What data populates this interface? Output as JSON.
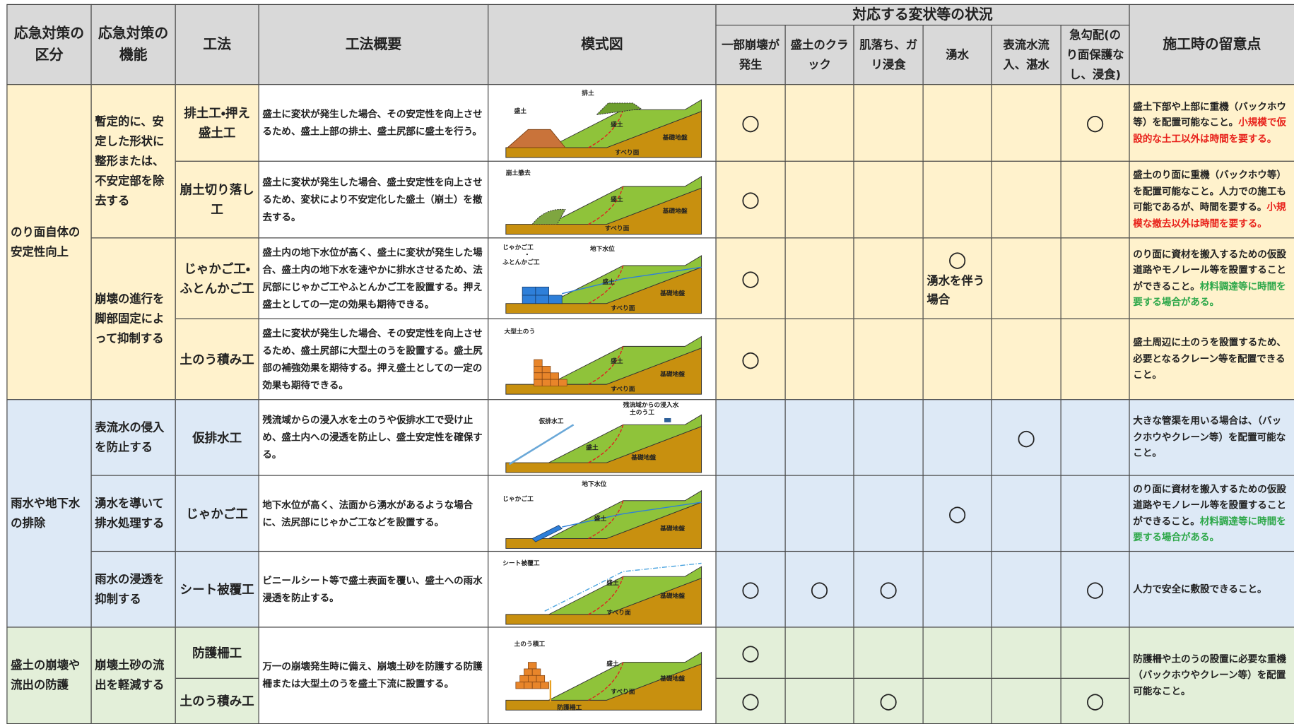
{
  "header": {
    "category": "応急対策の区分",
    "function": "応急対策の機能",
    "method": "工法",
    "summary": "工法概要",
    "diagram": "模式図",
    "conditions_group": "対応する変状等の状況",
    "conditions": [
      "一部崩壊が発生",
      "盛土のクラック",
      "肌落ち、ガリ浸食",
      "湧水",
      "表流水流入、湛水",
      "急勾配(のり面保護なし、浸食)"
    ],
    "notes": "施工時の留意点"
  },
  "categories": [
    {
      "label": "のり面自体の安定性向上",
      "color": "#fff2cc",
      "functions": [
        {
          "label": "暫定的に、安定した形状に整形または、不安定部を除去する",
          "blocks": [
            {
              "methods": [
                {
                  "name": "排土工・押え盛土工",
                  "status": [
                    "○",
                    null,
                    null,
                    null,
                    null,
                    "○"
                  ]
                }
              ],
              "summary": "盛土に変状が発生した場合、その安定性を向上させるため、盛土上部の排土、盛土尻部に盛土を行う。",
              "diagram_labels": [
                "排土",
                "盛土",
                "盛土",
                "すべり面",
                "基礎地盤"
              ],
              "notes": [
                {
                  "text": "盛土下部や上部に重機（バックホウ等）を配置可能なこと。"
                },
                {
                  "text": "小規模で仮設的な土工以外は時間を要する。",
                  "color": "#e8221b"
                }
              ]
            },
            {
              "methods": [
                {
                  "name": "崩土切り落し工",
                  "status": [
                    "○",
                    null,
                    null,
                    null,
                    null,
                    null
                  ]
                }
              ],
              "summary": "盛土に変状が発生した場合、盛土安定性を向上させるため、変状により不安定化した盛土（崩土）を撤去する。",
              "diagram_labels": [
                "崩土撤去",
                "盛土",
                "すべり面",
                "基礎地盤"
              ],
              "notes": [
                {
                  "text": "盛土のり面に重機（バックホウ等）を配置可能なこと。人力での施工も可能であるが、時間を要する。"
                },
                {
                  "text": "小規模な撤去以外は時間を要する。",
                  "color": "#e8221b"
                }
              ]
            }
          ]
        },
        {
          "label": "崩壊の進行を脚部固定によって抑制する",
          "blocks": [
            {
              "methods": [
                {
                  "name": "じゃかご工・ふとんかご工",
                  "status": [
                    "○",
                    null,
                    null,
                    {
                      "mark": "○",
                      "note": "湧水を伴う場合"
                    },
                    null,
                    null
                  ]
                }
              ],
              "summary": "盛土内の地下水位が高く、盛土に変状が発生した場合、盛土内の地下水を速やかに排水させるため、法尻部にじゃかご工やふとんかご工を設置する。押え盛土としての一定の効果も期待できる。",
              "diagram_labels": [
                "じゃかご工",
                "・",
                "ふとんかご工",
                "地下水位",
                "盛土",
                "すべり面",
                "基礎地盤"
              ],
              "notes": [
                {
                  "text": "のり面に資材を搬入するための仮設道路やモノレール等を設置することができること。"
                },
                {
                  "text": "材料調達等に時間を要する場合がある。",
                  "color": "#2ea84a"
                }
              ]
            },
            {
              "methods": [
                {
                  "name": "土のう積み工",
                  "status": [
                    "○",
                    null,
                    null,
                    null,
                    null,
                    null
                  ]
                }
              ],
              "summary": "盛土に変状が発生した場合、その安定性を向上させるため、盛土尻部に大型土のうを設置する。盛土尻部の補強効果を期待する。押え盛土としての一定の効果も期待できる。",
              "diagram_labels": [
                "大型土のう",
                "盛土",
                "すべり面",
                "基礎地盤"
              ],
              "notes": [
                {
                  "text": "盛土周辺に土のうを設置するため、必要となるクレーン等を配置できること。"
                }
              ]
            }
          ]
        }
      ]
    },
    {
      "label": "雨水や地下水の排除",
      "color": "#dde9f6",
      "functions": [
        {
          "label": "表流水の侵入を防止する",
          "blocks": [
            {
              "methods": [
                {
                  "name": "仮排水工",
                  "status": [
                    null,
                    null,
                    null,
                    null,
                    "○",
                    null
                  ]
                }
              ],
              "summary": "残流域からの浸入水を土のうや仮排水工で受け止め、盛土内への浸透を防止し、盛土安定性を確保する。",
              "diagram_labels": [
                "仮排水工",
                "残流域からの浸入水",
                "土のう工",
                "盛土",
                "基礎地盤"
              ],
              "notes": [
                {
                  "text": "大きな管渠を用いる場合は、（バックホウやクレーン等）を配置可能なこと。"
                }
              ]
            }
          ]
        },
        {
          "label": "湧水を導いて排水処理する",
          "blocks": [
            {
              "methods": [
                {
                  "name": "じゃかご工",
                  "status": [
                    null,
                    null,
                    null,
                    "○",
                    null,
                    null
                  ]
                }
              ],
              "summary": "地下水位が高く、法面から湧水があるような場合に、法尻部にじゃかご工などを設置する。",
              "diagram_labels": [
                "地下水位",
                "じゃかご工",
                "盛土",
                "基礎地盤"
              ],
              "notes": [
                {
                  "text": "のり面に資材を搬入するための仮設道路やモノレール等を設置することができること。"
                },
                {
                  "text": "材料調達等に時間を要する場合がある。",
                  "color": "#2ea84a"
                }
              ]
            }
          ]
        },
        {
          "label": "雨水の浸透を抑制する",
          "blocks": [
            {
              "methods": [
                {
                  "name": "シート被覆工",
                  "status": [
                    "○",
                    "○",
                    "○",
                    null,
                    null,
                    "○"
                  ]
                }
              ],
              "summary": "ビニールシート等で盛土表面を覆い、盛土への雨水浸透を防止する。",
              "diagram_labels": [
                "シート被覆工",
                "盛土",
                "すべり面",
                "基礎地盤"
              ],
              "notes": [
                {
                  "text": "人力で安全に敷設できること。"
                }
              ]
            }
          ]
        }
      ]
    },
    {
      "label": "盛土の崩壊や流出の防護",
      "color": "#e3efd9",
      "functions": [
        {
          "label": "崩壊土砂の流出を軽減する",
          "blocks": [
            {
              "methods": [
                {
                  "name": "防護柵工",
                  "status": [
                    "○",
                    null,
                    null,
                    null,
                    null,
                    null
                  ]
                },
                {
                  "name": "土のう積み工",
                  "status": [
                    "○",
                    null,
                    "○",
                    null,
                    null,
                    "○"
                  ]
                }
              ],
              "summary": "万一の崩壊発生時に備え、崩壊土砂を防護する防護柵または大型土のうを盛土下流に設置する。",
              "diagram_labels": [
                "土のう積工",
                "盛土",
                "すべり面",
                "基礎地盤",
                "防護柵工"
              ],
              "notes": [
                {
                  "text": "防護柵や土のうの設置に必要な重機（バックホウやクレーン等）を配置可能なこと。"
                }
              ]
            }
          ]
        }
      ]
    }
  ]
}
